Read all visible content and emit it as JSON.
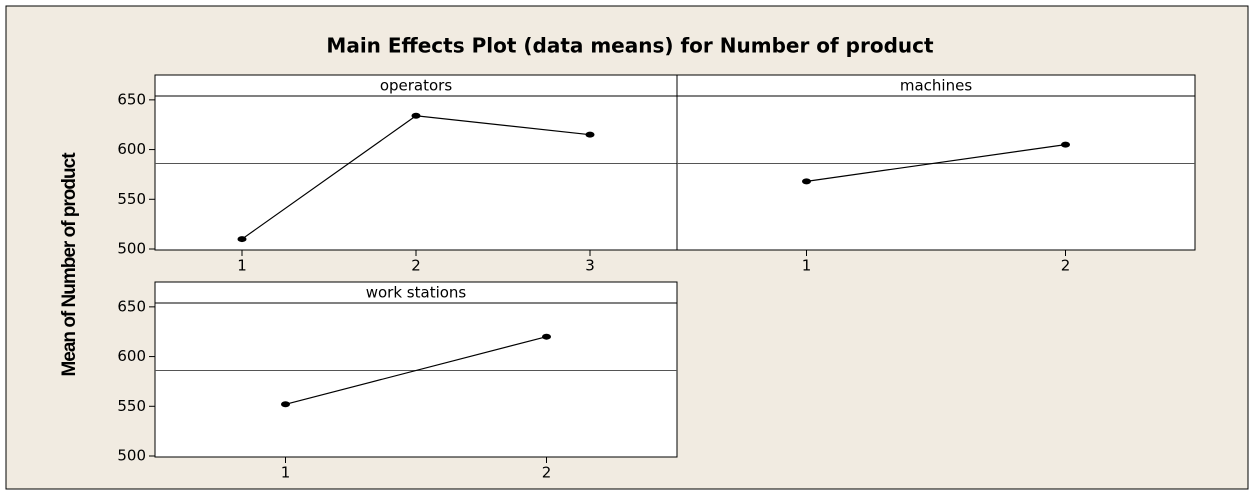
{
  "title": "Main Effects Plot (data means) for Number of product",
  "y_axis_label": "Mean of Number of product",
  "chart_data": [
    {
      "type": "line",
      "title": "operators",
      "categories": [
        "1",
        "2",
        "3"
      ],
      "values": [
        510,
        634,
        615
      ],
      "color": "#000000",
      "reference_line": 586,
      "ylim": [
        499,
        675
      ],
      "yticks": [
        500,
        550,
        600,
        650
      ]
    },
    {
      "type": "line",
      "title": "machines",
      "categories": [
        "1",
        "2"
      ],
      "values": [
        568,
        605
      ],
      "color": "#000000",
      "reference_line": 586,
      "ylim": [
        499,
        675
      ]
    },
    {
      "type": "line",
      "title": "work stations",
      "categories": [
        "1",
        "2"
      ],
      "values": [
        552,
        620
      ],
      "color": "#000000",
      "reference_line": 586,
      "ylim": [
        499,
        675
      ],
      "yticks": [
        500,
        550,
        600,
        650
      ]
    }
  ]
}
